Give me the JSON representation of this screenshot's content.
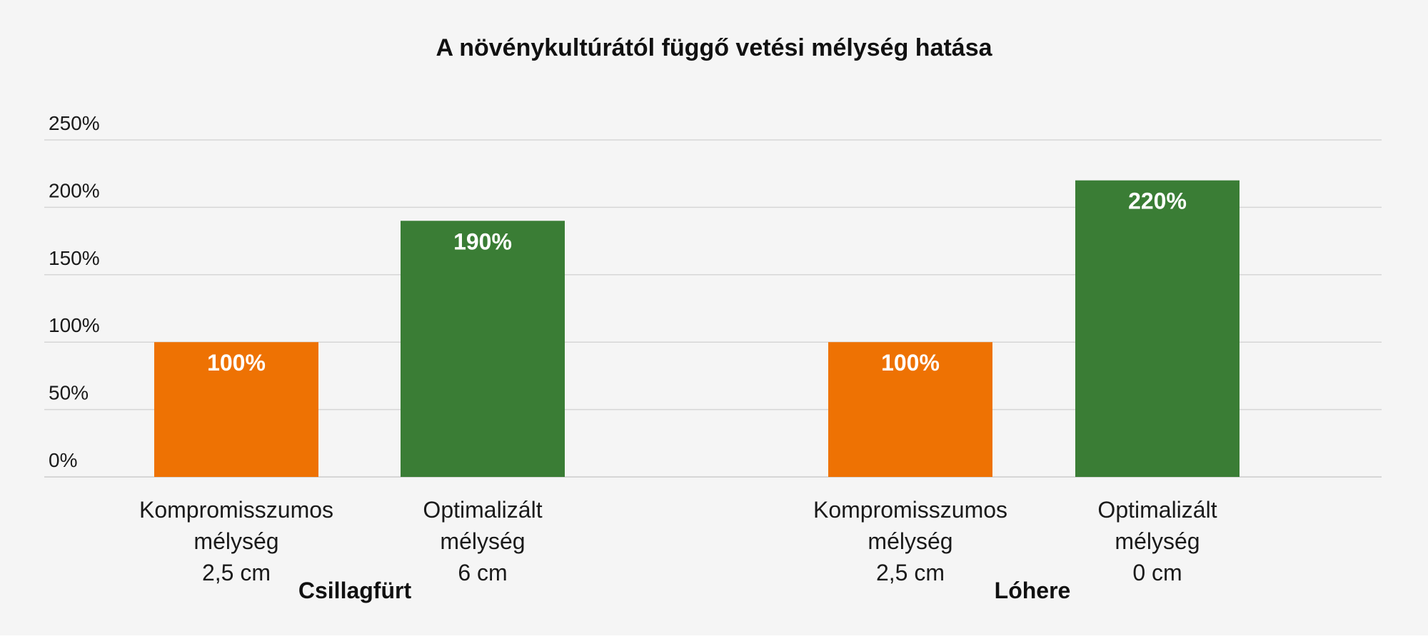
{
  "chart_data": {
    "type": "bar",
    "title": "A növénykultúrától függő vetési mélység hatása",
    "y_ticks": [
      "0%",
      "50%",
      "100%",
      "150%",
      "200%",
      "250%"
    ],
    "ylim": [
      0,
      250
    ],
    "grid": true,
    "colors": {
      "compromise": "#ee7203",
      "optimized": "#3a7d35",
      "grid": "#d6d6d6",
      "background": "#f5f5f5"
    },
    "groups": [
      {
        "name": "Csillagfürt",
        "bars": [
          {
            "label_lines": [
              "Kompromisszumos",
              "mélység",
              "2,5 cm"
            ],
            "value": 100,
            "value_label": "100%",
            "kind": "compromise"
          },
          {
            "label_lines": [
              "Optimalizált",
              "mélység",
              "6 cm"
            ],
            "value": 190,
            "value_label": "190%",
            "kind": "optimized"
          }
        ]
      },
      {
        "name": "Lóhere",
        "bars": [
          {
            "label_lines": [
              "Kompromisszumos",
              "mélység",
              "2,5 cm"
            ],
            "value": 100,
            "value_label": "100%",
            "kind": "compromise"
          },
          {
            "label_lines": [
              "Optimalizált",
              "mélység",
              "0 cm"
            ],
            "value": 220,
            "value_label": "220%",
            "kind": "optimized"
          }
        ]
      }
    ]
  }
}
